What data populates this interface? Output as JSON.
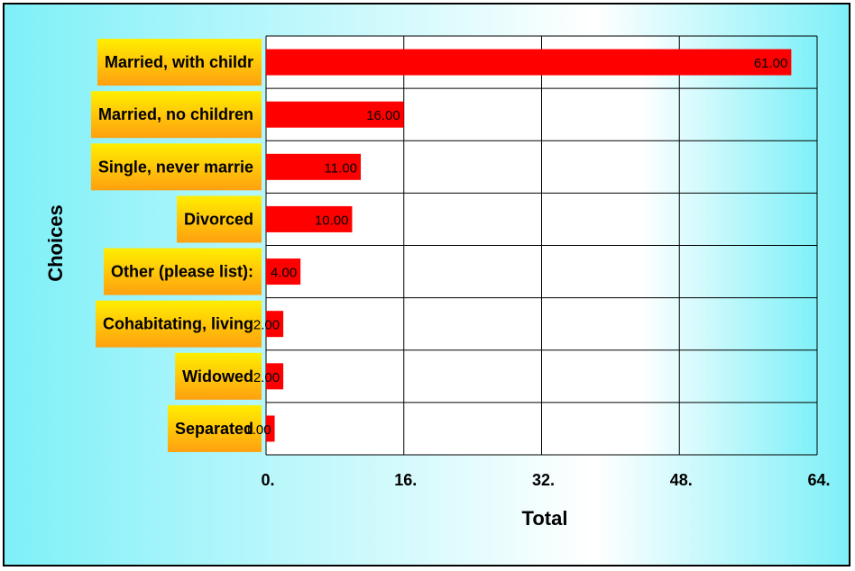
{
  "chart_data": {
    "type": "bar",
    "orientation": "horizontal",
    "categories": [
      "Married, with childr",
      "Married, no children",
      "Single, never marrie",
      "Divorced",
      "Other (please list):",
      "Cohabitating, living",
      "Widowed",
      "Separated"
    ],
    "values": [
      61,
      16,
      11,
      10,
      4,
      2,
      2,
      1
    ],
    "data_labels": [
      "61.00",
      "16.00",
      "11.00",
      "10.00",
      "4.00",
      "2.00",
      "2.00",
      "1.00"
    ],
    "ticks": [
      0,
      16,
      32,
      48,
      64
    ],
    "tick_labels": [
      "0.",
      "16.",
      "32.",
      "48.",
      "64."
    ],
    "xlim": [
      0,
      64
    ],
    "xlabel": "Total",
    "ylabel": "Choices",
    "grid": true,
    "colors": {
      "bar": "#ff0000",
      "label_box_top": "#ffee00",
      "label_box_bottom": "#ffa010",
      "plot_bg": "#ffffff",
      "gradient_edge": "#7ef0f8"
    }
  }
}
